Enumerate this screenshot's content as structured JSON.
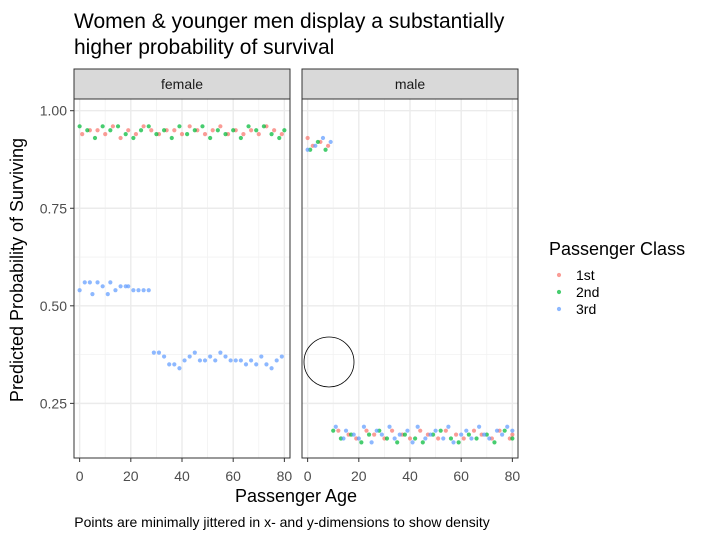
{
  "chart_data": {
    "type": "scatter",
    "title": "Women & younger men display a substantially\n higher probability of survival",
    "xlabel": "Passenger Age",
    "ylabel": "Predicted Probability of Surviving",
    "caption": "Points are minimally jittered in x- and y-dimensions to show density",
    "xlim": [
      -2.2,
      82.2
    ],
    "ylim": [
      0.11,
      1.03
    ],
    "x_ticks": [
      0,
      20,
      40,
      60,
      80
    ],
    "x_tick_labels": [
      "0",
      "20",
      "40",
      "60",
      "80"
    ],
    "y_ticks": [
      0.25,
      0.5,
      0.75,
      1.0
    ],
    "y_tick_labels": [
      "0.25",
      "0.50",
      "0.75",
      "1.00"
    ],
    "grid": true,
    "legend": {
      "title": "Passenger Class",
      "position": "right",
      "entries": [
        {
          "label": "1st",
          "color": "#F8766D"
        },
        {
          "label": "2nd",
          "color": "#00BA38"
        },
        {
          "label": "3rd",
          "color": "#619CFF"
        }
      ]
    },
    "panels": [
      {
        "label": "female",
        "series": [
          {
            "name": "1st",
            "color": "#F8766D",
            "x": [
              1,
              4,
              7,
              10,
              13,
              16,
              19,
              22,
              25,
              28,
              31,
              34,
              37,
              40,
              43,
              46,
              49,
              52,
              55,
              58,
              61,
              64,
              67,
              70,
              73,
              76,
              79
            ],
            "y": [
              0.94,
              0.95,
              0.95,
              0.94,
              0.96,
              0.93,
              0.95,
              0.94,
              0.96,
              0.95,
              0.94,
              0.95,
              0.95,
              0.94,
              0.96,
              0.95,
              0.94,
              0.95,
              0.96,
              0.94,
              0.95,
              0.94,
              0.95,
              0.94,
              0.96,
              0.95,
              0.94
            ]
          },
          {
            "name": "2nd",
            "color": "#00BA38",
            "x": [
              0,
              3,
              6,
              9,
              12,
              15,
              18,
              21,
              24,
              27,
              30,
              33,
              36,
              39,
              42,
              45,
              48,
              51,
              54,
              57,
              60,
              63,
              66,
              69,
              72,
              75,
              78,
              80
            ],
            "y": [
              0.96,
              0.95,
              0.93,
              0.96,
              0.95,
              0.96,
              0.94,
              0.93,
              0.95,
              0.96,
              0.94,
              0.95,
              0.93,
              0.96,
              0.94,
              0.95,
              0.96,
              0.93,
              0.95,
              0.94,
              0.95,
              0.93,
              0.96,
              0.95,
              0.96,
              0.94,
              0.93,
              0.95
            ]
          },
          {
            "name": "3rd",
            "color": "#619CFF",
            "x": [
              0,
              2,
              4,
              5,
              7,
              9,
              11,
              12,
              14,
              16,
              18,
              19,
              21,
              23,
              25,
              27,
              29,
              31,
              33,
              35,
              37,
              39,
              41,
              43,
              45,
              47,
              49,
              51,
              53,
              55,
              57,
              59,
              61,
              63,
              65,
              67,
              69,
              71,
              73,
              75,
              77,
              79
            ],
            "y": [
              0.54,
              0.56,
              0.56,
              0.53,
              0.56,
              0.55,
              0.53,
              0.56,
              0.54,
              0.55,
              0.55,
              0.55,
              0.54,
              0.54,
              0.54,
              0.54,
              0.38,
              0.38,
              0.37,
              0.35,
              0.35,
              0.34,
              0.36,
              0.37,
              0.38,
              0.36,
              0.36,
              0.37,
              0.36,
              0.38,
              0.37,
              0.36,
              0.36,
              0.36,
              0.35,
              0.36,
              0.35,
              0.37,
              0.35,
              0.34,
              0.36,
              0.37
            ]
          }
        ]
      },
      {
        "label": "male",
        "series": [
          {
            "name": "1st",
            "color": "#F8766D",
            "x": [
              0,
              2,
              5,
              8,
              12,
              16,
              19,
              23,
              26,
              30,
              33,
              37,
              40,
              44,
              47,
              51,
              54,
              58,
              61,
              65,
              68,
              72,
              75,
              79,
              80
            ],
            "y": [
              0.93,
              0.91,
              0.92,
              0.91,
              0.18,
              0.17,
              0.16,
              0.18,
              0.17,
              0.16,
              0.18,
              0.17,
              0.16,
              0.18,
              0.17,
              0.16,
              0.18,
              0.17,
              0.16,
              0.18,
              0.17,
              0.16,
              0.18,
              0.16,
              0.17
            ]
          },
          {
            "name": "2nd",
            "color": "#00BA38",
            "x": [
              1,
              4,
              7,
              10,
              13,
              17,
              21,
              24,
              28,
              31,
              35,
              38,
              42,
              45,
              49,
              52,
              56,
              59,
              63,
              66,
              70,
              73,
              77,
              80
            ],
            "y": [
              0.9,
              0.92,
              0.9,
              0.18,
              0.16,
              0.17,
              0.15,
              0.17,
              0.18,
              0.16,
              0.15,
              0.17,
              0.16,
              0.15,
              0.17,
              0.18,
              0.16,
              0.15,
              0.17,
              0.16,
              0.17,
              0.15,
              0.18,
              0.16
            ]
          },
          {
            "name": "3rd",
            "color": "#619CFF",
            "x": [
              0,
              3,
              6,
              9,
              11,
              14,
              15,
              18,
              20,
              22,
              25,
              27,
              29,
              32,
              34,
              36,
              39,
              41,
              43,
              46,
              48,
              50,
              53,
              55,
              57,
              60,
              62,
              64,
              67,
              69,
              71,
              74,
              76,
              78,
              80
            ],
            "y": [
              0.9,
              0.91,
              0.93,
              0.92,
              0.19,
              0.16,
              0.18,
              0.17,
              0.16,
              0.19,
              0.15,
              0.18,
              0.17,
              0.19,
              0.16,
              0.17,
              0.18,
              0.15,
              0.19,
              0.16,
              0.17,
              0.18,
              0.16,
              0.19,
              0.15,
              0.17,
              0.18,
              0.16,
              0.19,
              0.17,
              0.16,
              0.18,
              0.17,
              0.19,
              0.18
            ]
          }
        ]
      }
    ]
  }
}
